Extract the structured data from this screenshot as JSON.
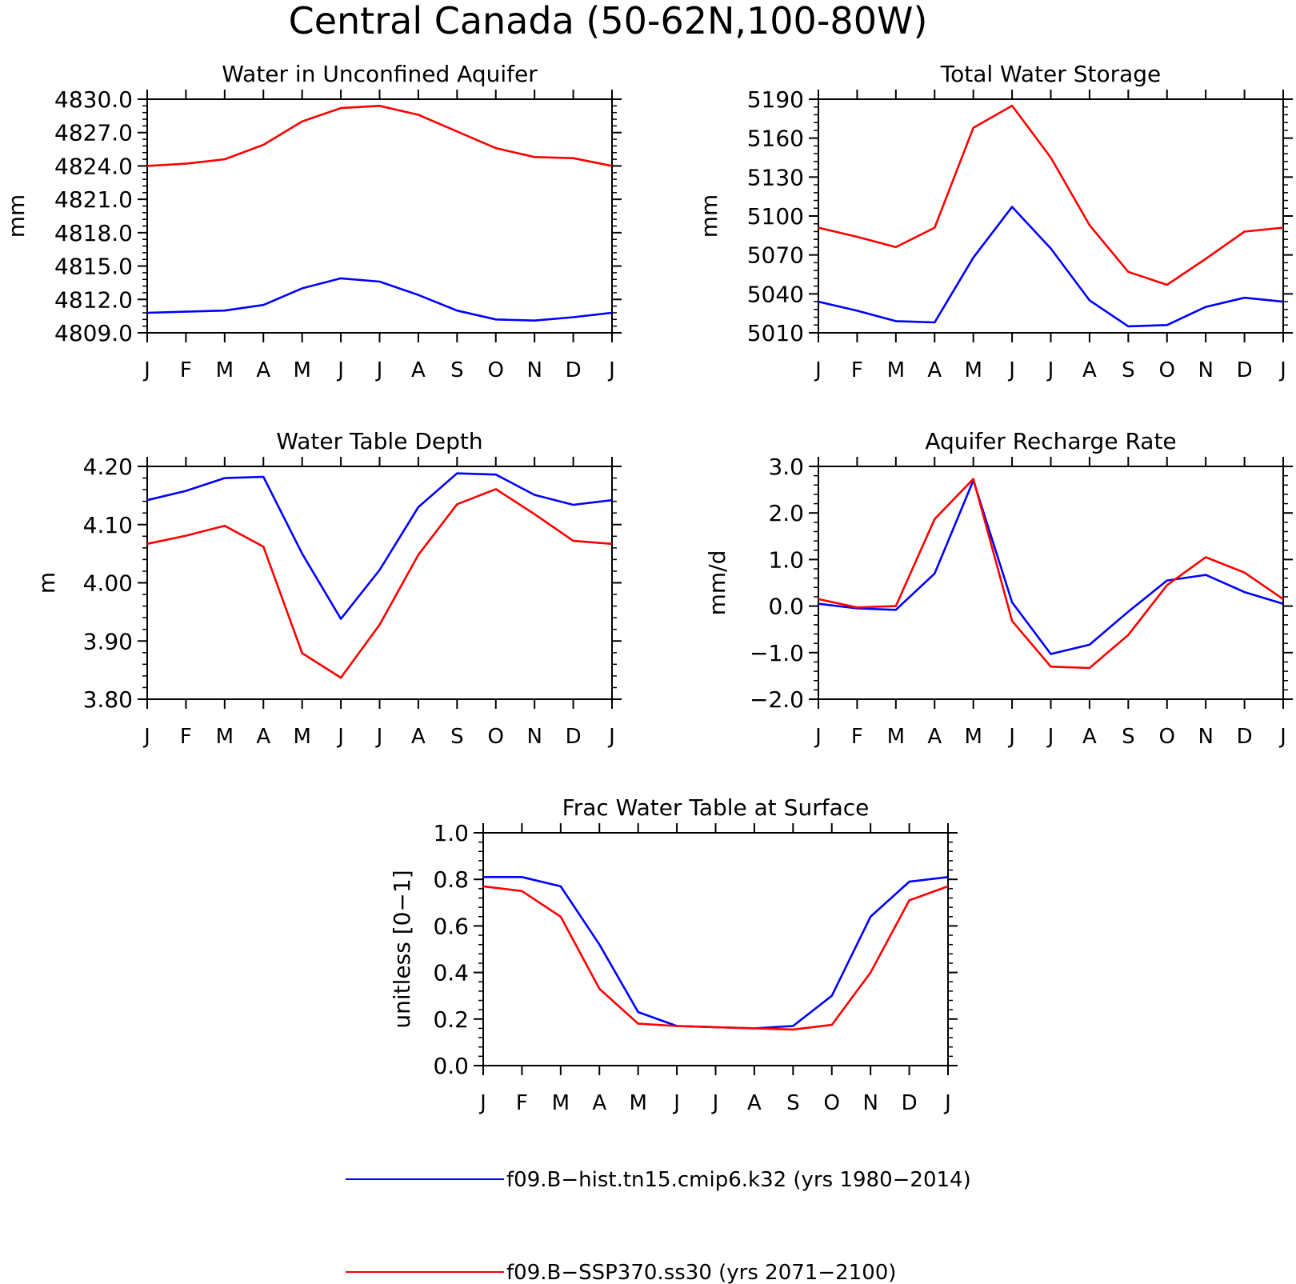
{
  "figure": {
    "title": "Central Canada (50-62N,100-80W)"
  },
  "months": [
    "J",
    "F",
    "M",
    "A",
    "M",
    "J",
    "J",
    "A",
    "S",
    "O",
    "N",
    "D",
    "J"
  ],
  "legend": [
    {
      "label": "f09.B-hist.tn15.cmip6.k32 (yrs 1980-2014)",
      "color": "#0000ff"
    },
    {
      "label": "f09.B-SSP370.ss30 (yrs 2071-2100)",
      "color": "#ff0000"
    }
  ],
  "chart_data": [
    {
      "type": "line",
      "title": "Water in Unconfined Aquifer",
      "ylabel": "mm",
      "ylim": [
        4809.0,
        4830.0
      ],
      "yticks": [
        4809.0,
        4812.0,
        4815.0,
        4818.0,
        4821.0,
        4824.0,
        4827.0,
        4830.0
      ],
      "ytick_labels": [
        "4809.0",
        "4812.0",
        "4815.0",
        "4818.0",
        "4821.0",
        "4824.0",
        "4827.0",
        "4830.0"
      ],
      "series": [
        {
          "color": "#0000ff",
          "values": [
            4810.8,
            4810.9,
            4811.0,
            4811.5,
            4813.0,
            4813.9,
            4813.6,
            4812.4,
            4811.0,
            4810.2,
            4810.1,
            4810.4,
            4810.8
          ]
        },
        {
          "color": "#ff0000",
          "values": [
            4824.0,
            4824.2,
            4824.6,
            4825.9,
            4828.0,
            4829.2,
            4829.4,
            4828.6,
            4827.1,
            4825.6,
            4824.8,
            4824.7,
            4824.0
          ]
        }
      ]
    },
    {
      "type": "line",
      "title": "Total Water Storage",
      "ylabel": "mm",
      "ylim": [
        5010,
        5190
      ],
      "yticks": [
        5010,
        5040,
        5070,
        5100,
        5130,
        5160,
        5190
      ],
      "ytick_labels": [
        "5010",
        "5040",
        "5070",
        "5100",
        "5130",
        "5160",
        "5190"
      ],
      "series": [
        {
          "color": "#0000ff",
          "values": [
            5034,
            5027,
            5019,
            5018,
            5068,
            5107,
            5075,
            5035,
            5015,
            5016,
            5030,
            5037,
            5034
          ]
        },
        {
          "color": "#ff0000",
          "values": [
            5091,
            5084,
            5076,
            5091,
            5168,
            5185,
            5145,
            5093,
            5057,
            5047,
            5067,
            5088,
            5091
          ]
        }
      ]
    },
    {
      "type": "line",
      "title": "Water Table Depth",
      "ylabel": "m",
      "ylim": [
        3.8,
        4.2
      ],
      "yticks": [
        3.8,
        3.9,
        4.0,
        4.1,
        4.2
      ],
      "ytick_labels": [
        "3.80",
        "3.90",
        "4.00",
        "4.10",
        "4.20"
      ],
      "series": [
        {
          "color": "#0000ff",
          "values": [
            4.142,
            4.158,
            4.18,
            4.182,
            4.05,
            3.938,
            4.022,
            4.13,
            4.188,
            4.186,
            4.151,
            4.134,
            4.142
          ]
        },
        {
          "color": "#ff0000",
          "values": [
            4.067,
            4.081,
            4.098,
            4.062,
            3.879,
            3.837,
            3.928,
            4.048,
            4.135,
            4.161,
            4.118,
            4.072,
            4.067
          ]
        }
      ]
    },
    {
      "type": "line",
      "title": "Aquifer Recharge Rate",
      "ylabel": "mm/d",
      "ylim": [
        -2.0,
        3.0
      ],
      "yticks": [
        -2.0,
        -1.0,
        0.0,
        1.0,
        2.0,
        3.0
      ],
      "ytick_labels": [
        "-2.0",
        "-1.0",
        "0.0",
        "1.0",
        "2.0",
        "3.0"
      ],
      "series": [
        {
          "color": "#0000ff",
          "values": [
            0.05,
            -0.05,
            -0.08,
            0.7,
            2.7,
            0.08,
            -1.03,
            -0.83,
            -0.12,
            0.55,
            0.67,
            0.3,
            0.05
          ]
        },
        {
          "color": "#ff0000",
          "values": [
            0.15,
            -0.03,
            0.0,
            1.87,
            2.73,
            -0.32,
            -1.3,
            -1.33,
            -0.62,
            0.45,
            1.05,
            0.72,
            0.15
          ]
        }
      ]
    },
    {
      "type": "line",
      "title": "Frac Water Table at Surface",
      "ylabel": "unitless [0-1]",
      "ylim": [
        0.0,
        1.0
      ],
      "yticks": [
        0.0,
        0.2,
        0.4,
        0.6,
        0.8,
        1.0
      ],
      "ytick_labels": [
        "0.0",
        "0.2",
        "0.4",
        "0.6",
        "0.8",
        "1.0"
      ],
      "series": [
        {
          "color": "#0000ff",
          "values": [
            0.81,
            0.81,
            0.77,
            0.52,
            0.23,
            0.17,
            0.165,
            0.16,
            0.17,
            0.3,
            0.64,
            0.79,
            0.81
          ]
        },
        {
          "color": "#ff0000",
          "values": [
            0.77,
            0.75,
            0.64,
            0.33,
            0.18,
            0.17,
            0.165,
            0.16,
            0.155,
            0.175,
            0.4,
            0.71,
            0.77
          ]
        }
      ]
    }
  ]
}
